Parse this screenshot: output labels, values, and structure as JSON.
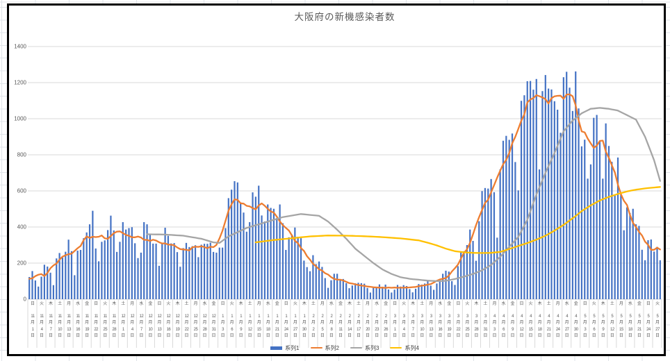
{
  "title": "大阪府の新機感染者数",
  "legend": [
    {
      "label": "系列1",
      "color": "#4472C4",
      "kind": "bar"
    },
    {
      "label": "系列2",
      "color": "#ED7D31",
      "kind": "line"
    },
    {
      "label": "系列3",
      "color": "#A5A5A5",
      "kind": "line"
    },
    {
      "label": "系列4",
      "color": "#FFC000",
      "kind": "line"
    }
  ],
  "axis_particles": {
    "month": "月",
    "day": "日"
  },
  "chart_data": {
    "type": "bar+line combo",
    "title": "大阪府の新機感染者数",
    "ylim": [
      0,
      1400
    ],
    "y_tick_step": 200,
    "grid": true,
    "legend_position": "bottom",
    "x_start_date": "11月1日",
    "x_end_date": "5月29日",
    "x_label_interval_days": 3,
    "x_labels": [
      {
        "w": "日",
        "m": "11",
        "d": "1"
      },
      {
        "w": "火",
        "m": "11",
        "d": "4"
      },
      {
        "w": "木",
        "m": "11",
        "d": "7"
      },
      {
        "w": "土",
        "m": "11",
        "d": "10"
      },
      {
        "w": "月",
        "m": "11",
        "d": "13"
      },
      {
        "w": "水",
        "m": "11",
        "d": "16"
      },
      {
        "w": "金",
        "m": "11",
        "d": "19"
      },
      {
        "w": "日",
        "m": "11",
        "d": "22"
      },
      {
        "w": "火",
        "m": "11",
        "d": "25"
      },
      {
        "w": "木",
        "m": "11",
        "d": "28"
      },
      {
        "w": "土",
        "m": "12",
        "d": "1"
      },
      {
        "w": "月",
        "m": "12",
        "d": "4"
      },
      {
        "w": "水",
        "m": "12",
        "d": "7"
      },
      {
        "w": "金",
        "m": "12",
        "d": "10"
      },
      {
        "w": "日",
        "m": "12",
        "d": "13"
      },
      {
        "w": "火",
        "m": "12",
        "d": "16"
      },
      {
        "w": "木",
        "m": "12",
        "d": "19"
      },
      {
        "w": "土",
        "m": "12",
        "d": "22"
      },
      {
        "w": "月",
        "m": "12",
        "d": "25"
      },
      {
        "w": "水",
        "m": "12",
        "d": "28"
      },
      {
        "w": "金",
        "m": "12",
        "d": "31"
      },
      {
        "w": "日",
        "m": "1",
        "d": "3"
      },
      {
        "w": "火",
        "m": "1",
        "d": "6"
      },
      {
        "w": "木",
        "m": "1",
        "d": "9"
      },
      {
        "w": "土",
        "m": "1",
        "d": "12"
      },
      {
        "w": "月",
        "m": "1",
        "d": "15"
      },
      {
        "w": "水",
        "m": "1",
        "d": "18"
      },
      {
        "w": "金",
        "m": "1",
        "d": "21"
      },
      {
        "w": "日",
        "m": "1",
        "d": "24"
      },
      {
        "w": "火",
        "m": "1",
        "d": "27"
      },
      {
        "w": "木",
        "m": "1",
        "d": "30"
      },
      {
        "w": "土",
        "m": "2",
        "d": "2"
      },
      {
        "w": "月",
        "m": "2",
        "d": "5"
      },
      {
        "w": "水",
        "m": "2",
        "d": "8"
      },
      {
        "w": "金",
        "m": "2",
        "d": "11"
      },
      {
        "w": "木",
        "m": "2",
        "d": "14"
      },
      {
        "w": "土",
        "m": "2",
        "d": "17"
      },
      {
        "w": "月",
        "m": "2",
        "d": "20"
      },
      {
        "w": "水",
        "m": "2",
        "d": "23"
      },
      {
        "w": "金",
        "m": "2",
        "d": "26"
      },
      {
        "w": "日",
        "m": "3",
        "d": "1"
      },
      {
        "w": "火",
        "m": "3",
        "d": "4"
      },
      {
        "w": "木",
        "m": "3",
        "d": "7"
      },
      {
        "w": "土",
        "m": "3",
        "d": "10"
      },
      {
        "w": "月",
        "m": "3",
        "d": "13"
      },
      {
        "w": "水",
        "m": "3",
        "d": "16"
      },
      {
        "w": "金",
        "m": "3",
        "d": "19"
      },
      {
        "w": "日",
        "m": "3",
        "d": "22"
      },
      {
        "w": "火",
        "m": "3",
        "d": "25"
      },
      {
        "w": "木",
        "m": "3",
        "d": "28"
      },
      {
        "w": "土",
        "m": "3",
        "d": "31"
      },
      {
        "w": "月",
        "m": "4",
        "d": "3"
      },
      {
        "w": "水",
        "m": "4",
        "d": "6"
      },
      {
        "w": "金",
        "m": "4",
        "d": "9"
      },
      {
        "w": "日",
        "m": "4",
        "d": "12"
      },
      {
        "w": "火",
        "m": "4",
        "d": "15"
      },
      {
        "w": "木",
        "m": "4",
        "d": "18"
      },
      {
        "w": "土",
        "m": "4",
        "d": "21"
      },
      {
        "w": "月",
        "m": "4",
        "d": "24"
      },
      {
        "w": "水",
        "m": "4",
        "d": "27"
      },
      {
        "w": "金",
        "m": "4",
        "d": "30"
      },
      {
        "w": "日",
        "m": "5",
        "d": "3"
      },
      {
        "w": "火",
        "m": "5",
        "d": "6"
      },
      {
        "w": "木",
        "m": "5",
        "d": "9"
      },
      {
        "w": "土",
        "m": "5",
        "d": "12"
      },
      {
        "w": "月",
        "m": "5",
        "d": "15"
      },
      {
        "w": "水",
        "m": "5",
        "d": "18"
      },
      {
        "w": "金",
        "m": "5",
        "d": "21"
      },
      {
        "w": "日",
        "m": "5",
        "d": "24"
      },
      {
        "w": "火",
        "m": "5",
        "d": "27"
      }
    ],
    "series": [
      {
        "name": "系列1",
        "type": "bar",
        "color": "#4472C4",
        "values": [
          123,
          156,
          104,
          70,
          125,
          191,
          181,
          147,
          78,
          226,
          256,
          231,
          263,
          330,
          266,
          133,
          269,
          273,
          338,
          370,
          415,
          490,
          281,
          210,
          318,
          326,
          383,
          463,
          381,
          262,
          318,
          427,
          386,
          394,
          399,
          310,
          228,
          258,
          427,
          415,
          357,
          308,
          308,
          185,
          306,
          396,
          351,
          309,
          311,
          261,
          180,
          283,
          312,
          289,
          294,
          299,
          233,
          302,
          307,
          307,
          313,
          262,
          258,
          286,
          286,
          394,
          560,
          607,
          654,
          647,
          532,
          480,
          374,
          427,
          592,
          568,
          629,
          464,
          431,
          525,
          506,
          501,
          450,
          525,
          421,
          273,
          343,
          357,
          397,
          346,
          338,
          214,
          178,
          155,
          244,
          194,
          209,
          179,
          117,
          63,
          105,
          141,
          141,
          108,
          112,
          89,
          61,
          76,
          88,
          91,
          89,
          86,
          62,
          37,
          63,
          64,
          82,
          69,
          81,
          54,
          37,
          53,
          79,
          70,
          78,
          73,
          56,
          38,
          58,
          84,
          81,
          87,
          102,
          75,
          52,
          87,
          102,
          141,
          158,
          153,
          100,
          79,
          183,
          262,
          266,
          300,
          386,
          323,
          213,
          432,
          599,
          616,
          613,
          666,
          593,
          341,
          719,
          878,
          905,
          883,
          918,
          760,
          603,
          1099,
          1130,
          1208,
          1209,
          1161,
          1220,
          719,
          1153,
          1242,
          1167,
          1162,
          1097,
          1050,
          922,
          1230,
          1260,
          1172,
          1043,
          1262,
          1057,
          847,
          884,
          668,
          747,
          1005,
          1021,
          875,
          668,
          974,
          849,
          761,
          576,
          785,
          587,
          382,
          509,
          477,
          501,
          415,
          406,
          274,
          216,
          327,
          331,
          264,
          290,
          216
        ]
      },
      {
        "name": "系列2",
        "type": "line",
        "color": "#ED7D31",
        "derivation": "centered 7-day moving average of 系列1",
        "ma_window": 7
      },
      {
        "name": "系列3",
        "type": "line",
        "color": "#A5A5A5",
        "points": [
          [
            39,
            360
          ],
          [
            45,
            358
          ],
          [
            51,
            352
          ],
          [
            57,
            335
          ],
          [
            61,
            315
          ],
          [
            63,
            312
          ],
          [
            66,
            348
          ],
          [
            72,
            395
          ],
          [
            78,
            425
          ],
          [
            84,
            455
          ],
          [
            90,
            472
          ],
          [
            96,
            462
          ],
          [
            99,
            430
          ],
          [
            102,
            385
          ],
          [
            105,
            335
          ],
          [
            108,
            280
          ],
          [
            111,
            240
          ],
          [
            114,
            200
          ],
          [
            117,
            165
          ],
          [
            120,
            140
          ],
          [
            123,
            122
          ],
          [
            126,
            113
          ],
          [
            129,
            108
          ],
          [
            132,
            103
          ],
          [
            135,
            100
          ],
          [
            138,
            102
          ],
          [
            141,
            112
          ],
          [
            144,
            125
          ],
          [
            147,
            140
          ],
          [
            150,
            160
          ],
          [
            153,
            190
          ],
          [
            156,
            235
          ],
          [
            159,
            290
          ],
          [
            162,
            345
          ],
          [
            165,
            440
          ],
          [
            168,
            580
          ],
          [
            171,
            700
          ],
          [
            174,
            810
          ],
          [
            177,
            930
          ],
          [
            180,
            990
          ],
          [
            183,
            1030
          ],
          [
            186,
            1055
          ],
          [
            189,
            1060
          ],
          [
            192,
            1055
          ],
          [
            195,
            1045
          ],
          [
            198,
            1020
          ],
          [
            201,
            995
          ],
          [
            204,
            900
          ],
          [
            207,
            770
          ],
          [
            209,
            655
          ]
        ]
      },
      {
        "name": "系列4",
        "type": "line",
        "color": "#FFC000",
        "points": [
          [
            75,
            315
          ],
          [
            81,
            328
          ],
          [
            87,
            338
          ],
          [
            93,
            348
          ],
          [
            99,
            353
          ],
          [
            105,
            352
          ],
          [
            111,
            349
          ],
          [
            117,
            344
          ],
          [
            123,
            337
          ],
          [
            129,
            326
          ],
          [
            132,
            313
          ],
          [
            135,
            298
          ],
          [
            138,
            280
          ],
          [
            141,
            266
          ],
          [
            144,
            260
          ],
          [
            147,
            257
          ],
          [
            150,
            256
          ],
          [
            153,
            257
          ],
          [
            156,
            262
          ],
          [
            159,
            278
          ],
          [
            162,
            295
          ],
          [
            165,
            311
          ],
          [
            168,
            330
          ],
          [
            171,
            352
          ],
          [
            174,
            380
          ],
          [
            177,
            412
          ],
          [
            180,
            448
          ],
          [
            183,
            488
          ],
          [
            186,
            520
          ],
          [
            189,
            547
          ],
          [
            192,
            567
          ],
          [
            195,
            583
          ],
          [
            198,
            597
          ],
          [
            201,
            607
          ],
          [
            204,
            614
          ],
          [
            207,
            619
          ],
          [
            209,
            622
          ]
        ]
      }
    ]
  },
  "style": {
    "grid_color": "#D9D9D9",
    "axis_text_color": "#595959",
    "title_color": "#595959",
    "chart_border_color": "#000000",
    "sheet_grid_color": "#dfe3e8"
  }
}
